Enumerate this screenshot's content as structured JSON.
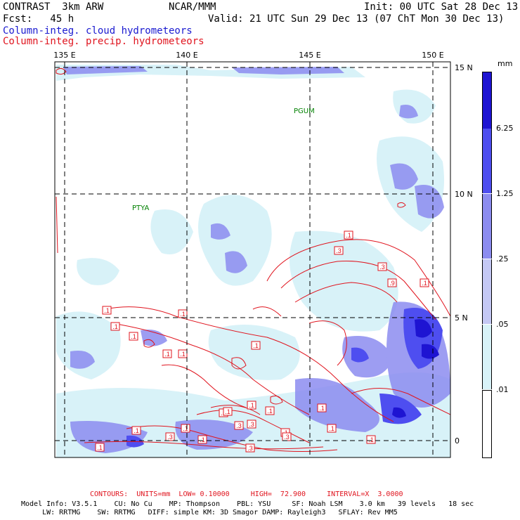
{
  "header": {
    "model_line": "CONTRAST  3km ARW",
    "org": "NCAR/MMM",
    "init": "Init: 00 UTC Sat 28 Dec 13",
    "fcst": "Fcst:   45 h",
    "valid": "Valid: 21 UTC Sun 29 Dec 13 (07 ChT Mon 30 Dec 13)",
    "field1": "Column-integ. cloud hydrometeors",
    "field2": "Column-integ. precip. hydrometeors"
  },
  "map": {
    "lon_labels": [
      "135 E",
      "140 E",
      "145 E",
      "150 E"
    ],
    "lat_labels": [
      "15 N",
      "10 N",
      "5 N",
      "0"
    ],
    "stations": [
      {
        "name": "PGUM",
        "lon": 144.8,
        "lat": 13.5
      },
      {
        "name": "PTYA",
        "lon": 138.1,
        "lat": 9.5
      }
    ],
    "contour_labels": [
      ".1",
      ".1",
      ".3",
      ".1",
      ".1",
      ".1",
      ".3",
      ".9",
      ".1",
      ".1",
      ".1",
      ".1",
      ".1",
      ".1",
      ".1",
      ".1",
      ".1",
      ".1",
      ".1",
      ".1",
      ".1",
      ".3",
      ".1",
      ".3",
      ".3",
      ".1",
      ".1",
      ".3",
      ".3"
    ]
  },
  "colorbar": {
    "unit": "mm",
    "levels": [
      "6.25",
      "1.25",
      ".25",
      ".05",
      ".01"
    ],
    "colors": [
      "#1e14d2",
      "#4e4ef0",
      "#8c8cf0",
      "#c4c8f4",
      "#d8f2f8",
      "#ffffff"
    ]
  },
  "footer": {
    "contours": "CONTOURS:  UNITS=mm  LOW= 0.10000     HIGH=  72.900     INTERVAL=X  3.0000",
    "info1": "Model Info: V3.5.1    CU: No Cu    MP: Thompson    PBL: YSU     SF: Noah LSM    3.0 km   39 levels   18 sec",
    "info2": "     LW: RRTMG    SW: RRTMG   DIFF: simple KM: 3D Smagor DAMP: Rayleigh3   SFLAY: Rev MM5"
  }
}
